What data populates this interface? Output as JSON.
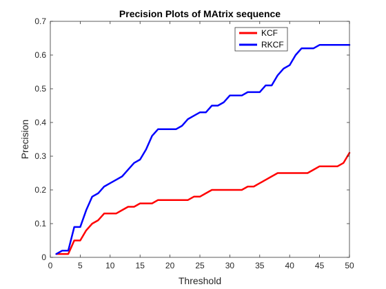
{
  "chart_data": {
    "type": "line",
    "title": "Precision Plots of MAtrix sequence",
    "xlabel": "Threshold",
    "ylabel": "Precision",
    "xlim": [
      0,
      50
    ],
    "ylim": [
      0,
      0.7
    ],
    "xticks": [
      0,
      5,
      10,
      15,
      20,
      25,
      30,
      35,
      40,
      45,
      50
    ],
    "yticks": [
      0,
      0.1,
      0.2,
      0.3,
      0.4,
      0.5,
      0.6,
      0.7
    ],
    "xtick_labels": [
      "0",
      "5",
      "10",
      "15",
      "20",
      "25",
      "30",
      "35",
      "40",
      "45",
      "50"
    ],
    "ytick_labels": [
      "0",
      "0.1",
      "0.2",
      "0.3",
      "0.4",
      "0.5",
      "0.6",
      "0.7"
    ],
    "grid": false,
    "legend_position": "top-right",
    "x": [
      1,
      2,
      3,
      4,
      5,
      6,
      7,
      8,
      9,
      10,
      11,
      12,
      13,
      14,
      15,
      16,
      17,
      18,
      19,
      20,
      21,
      22,
      23,
      24,
      25,
      26,
      27,
      28,
      29,
      30,
      31,
      32,
      33,
      34,
      35,
      36,
      37,
      38,
      39,
      40,
      41,
      42,
      43,
      44,
      45,
      46,
      47,
      48,
      49,
      50
    ],
    "series": [
      {
        "name": "KCF",
        "color": "#ff0000",
        "values": [
          0.01,
          0.01,
          0.01,
          0.05,
          0.05,
          0.08,
          0.1,
          0.11,
          0.13,
          0.13,
          0.13,
          0.14,
          0.15,
          0.15,
          0.16,
          0.16,
          0.16,
          0.17,
          0.17,
          0.17,
          0.17,
          0.17,
          0.17,
          0.18,
          0.18,
          0.19,
          0.2,
          0.2,
          0.2,
          0.2,
          0.2,
          0.2,
          0.21,
          0.21,
          0.22,
          0.23,
          0.24,
          0.25,
          0.25,
          0.25,
          0.25,
          0.25,
          0.25,
          0.26,
          0.27,
          0.27,
          0.27,
          0.27,
          0.28,
          0.31
        ]
      },
      {
        "name": "RKCF",
        "color": "#0000ff",
        "values": [
          0.01,
          0.02,
          0.02,
          0.09,
          0.09,
          0.14,
          0.18,
          0.19,
          0.21,
          0.22,
          0.23,
          0.24,
          0.26,
          0.28,
          0.29,
          0.32,
          0.36,
          0.38,
          0.38,
          0.38,
          0.38,
          0.39,
          0.41,
          0.42,
          0.43,
          0.43,
          0.45,
          0.45,
          0.46,
          0.48,
          0.48,
          0.48,
          0.49,
          0.49,
          0.49,
          0.51,
          0.51,
          0.54,
          0.56,
          0.57,
          0.6,
          0.62,
          0.62,
          0.62,
          0.63,
          0.63,
          0.63,
          0.63,
          0.63,
          0.63
        ]
      }
    ]
  }
}
